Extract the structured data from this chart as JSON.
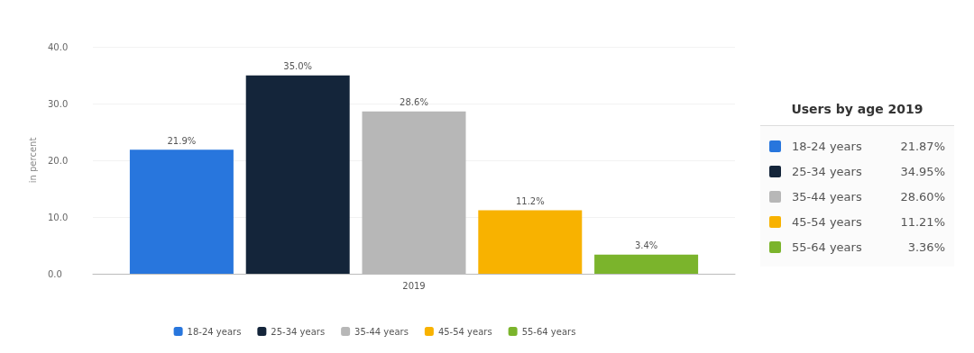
{
  "chart_data": {
    "type": "bar",
    "ylabel": "in percent",
    "categories": [
      "2019"
    ],
    "series": [
      {
        "name": "18-24 years",
        "color": "#2876dd",
        "values": [
          21.87
        ],
        "value_labels": [
          "21.9%"
        ]
      },
      {
        "name": "25-34 years",
        "color": "#14253a",
        "values": [
          34.95
        ],
        "value_labels": [
          "35.0%"
        ]
      },
      {
        "name": "35-44 years",
        "color": "#b7b7b7",
        "values": [
          28.6
        ],
        "value_labels": [
          "28.6%"
        ]
      },
      {
        "name": "45-54 years",
        "color": "#f8b200",
        "values": [
          11.21
        ],
        "value_labels": [
          "11.2%"
        ]
      },
      {
        "name": "55-64 years",
        "color": "#7bb42c",
        "values": [
          3.36
        ],
        "value_labels": [
          "3.4%"
        ]
      }
    ],
    "ylim": [
      0,
      40
    ],
    "yticks": [
      {
        "value": 0,
        "label": "0.0"
      },
      {
        "value": 10,
        "label": "10.0"
      },
      {
        "value": 20,
        "label": "20.0"
      },
      {
        "value": 30,
        "label": "30.0"
      },
      {
        "value": 40,
        "label": "40.0"
      }
    ],
    "grid": "y",
    "legend": "bottom",
    "legend_title": "Users by age 2019",
    "annotations": [
      "21.87%",
      "34.95%",
      "28.60%",
      "11.21%",
      "3.36%"
    ]
  }
}
